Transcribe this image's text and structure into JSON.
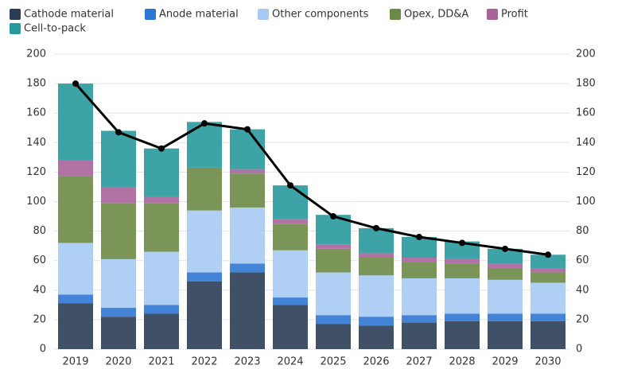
{
  "chart_data": {
    "type": "bar",
    "stacked": true,
    "categories": [
      "2019",
      "2020",
      "2021",
      "2022",
      "2023",
      "2024",
      "2025",
      "2026",
      "2027",
      "2028",
      "2029",
      "2030"
    ],
    "series": [
      {
        "name": "Cathode material",
        "color": "#2b3d55",
        "values": [
          31,
          22,
          24,
          46,
          52,
          30,
          17,
          16,
          18,
          19,
          19,
          19
        ]
      },
      {
        "name": "Anode material",
        "color": "#2f76d4",
        "values": [
          6,
          6,
          6,
          6,
          6,
          5,
          6,
          6,
          5,
          5,
          5,
          5
        ]
      },
      {
        "name": "Other components",
        "color": "#a6caf3",
        "values": [
          35,
          33,
          36,
          42,
          38,
          32,
          29,
          28,
          25,
          24,
          23,
          21
        ]
      },
      {
        "name": "Opex, DD&A",
        "color": "#6b8a45",
        "values": [
          45,
          38,
          33,
          29,
          23,
          18,
          16,
          12,
          11,
          10,
          8,
          7
        ]
      },
      {
        "name": "Profit",
        "color": "#a8649a",
        "values": [
          11,
          11,
          4,
          0,
          3,
          3,
          3,
          3,
          3,
          3,
          3,
          3
        ]
      },
      {
        "name": "Cell-to-pack",
        "color": "#28999d",
        "values": [
          52,
          38,
          33,
          31,
          27,
          23,
          20,
          17,
          14,
          12,
          10,
          9
        ]
      }
    ],
    "line": {
      "color": "#000000",
      "values": [
        180,
        147,
        136,
        153,
        149,
        111,
        90,
        82,
        76,
        72,
        68,
        64
      ]
    },
    "ylim": [
      0,
      200
    ],
    "yticks": [
      0,
      20,
      40,
      60,
      80,
      100,
      120,
      140,
      160,
      180,
      200
    ],
    "y2lim": [
      0,
      200
    ],
    "y2ticks": [
      0,
      20,
      40,
      60,
      80,
      100,
      120,
      140,
      160,
      180,
      200
    ],
    "grid": true
  }
}
